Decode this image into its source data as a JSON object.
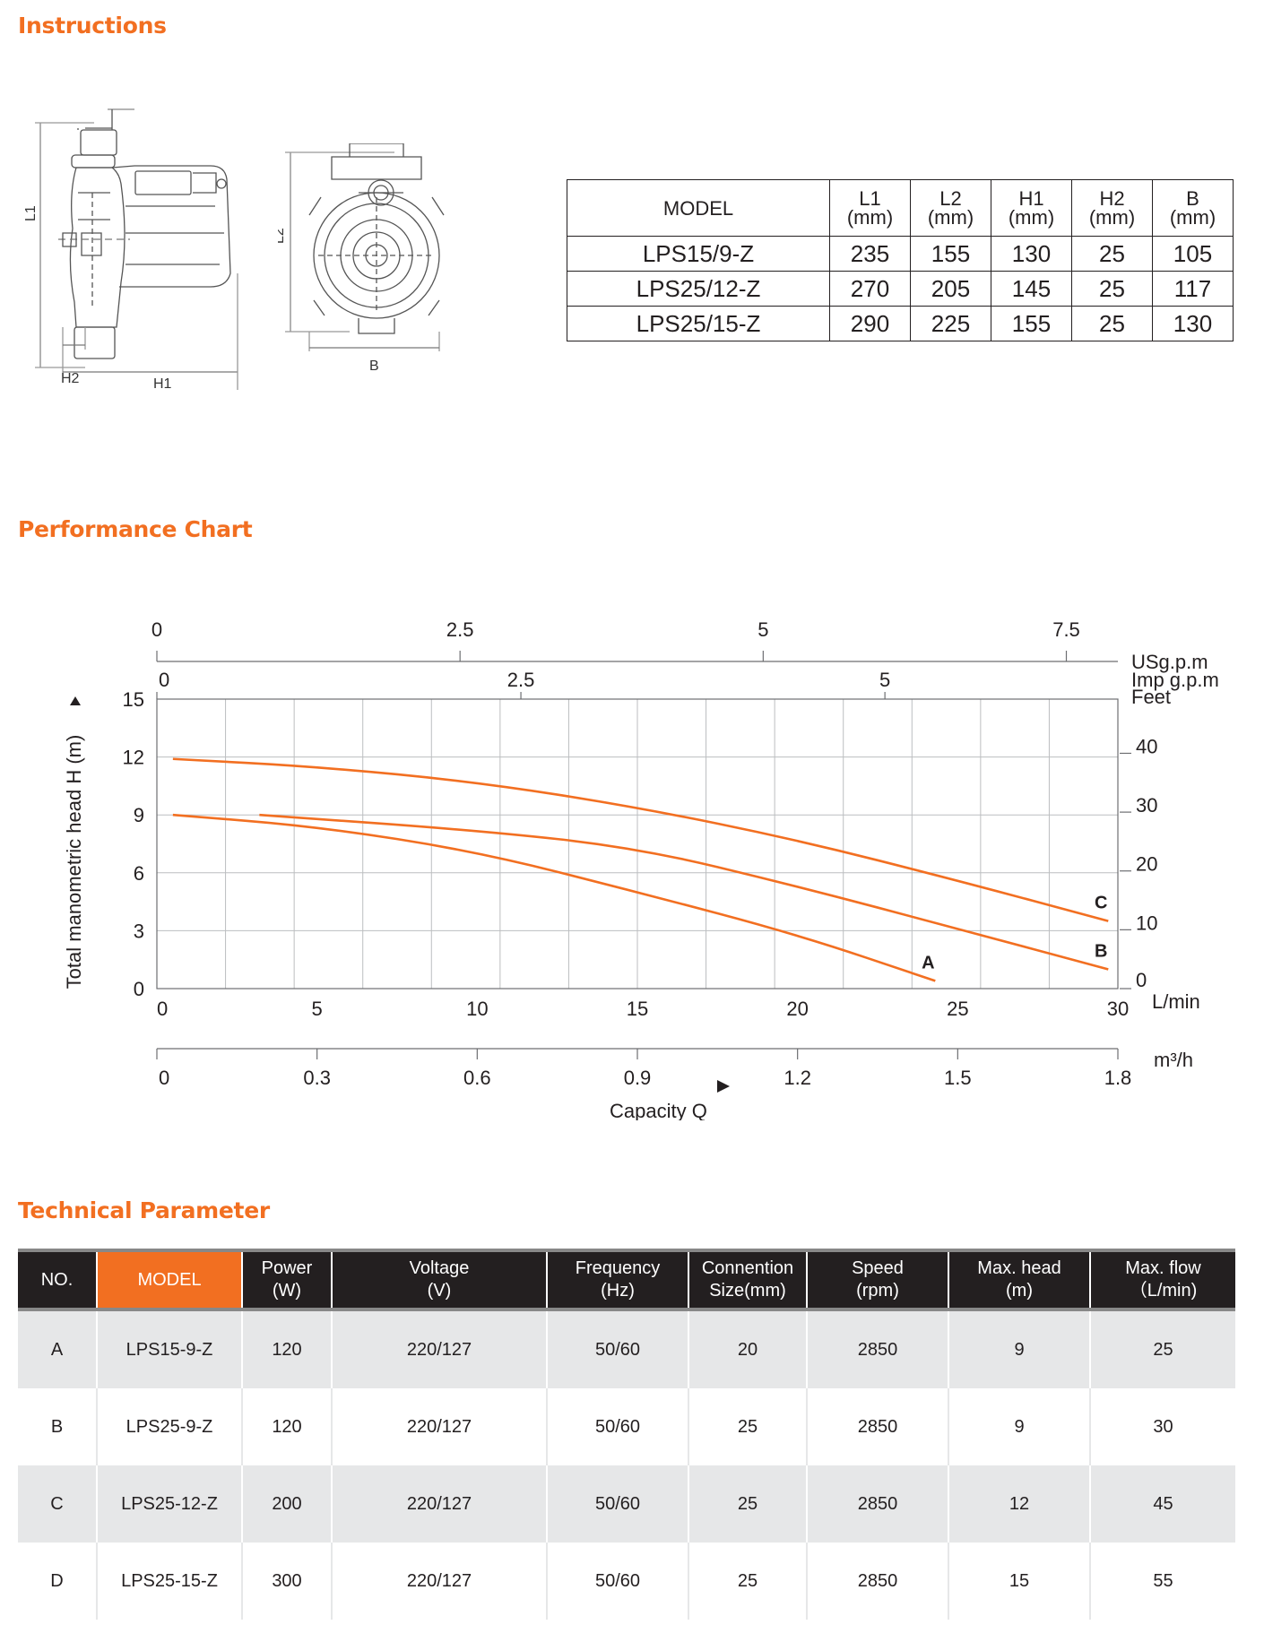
{
  "sections": {
    "instructions": "Instructions",
    "performance": "Performance Chart",
    "technical": "Technical Parameter"
  },
  "drawing": {
    "side_labels": {
      "l1": "L1",
      "h2": "H2",
      "h1": "H1"
    },
    "front_labels": {
      "l2": "L2",
      "b": "B"
    }
  },
  "dimension_table": {
    "header": {
      "model": "MODEL",
      "cols": [
        {
          "name": "L1",
          "unit": "(mm)"
        },
        {
          "name": "L2",
          "unit": "(mm)"
        },
        {
          "name": "H1",
          "unit": "(mm)"
        },
        {
          "name": "H2",
          "unit": "(mm)"
        },
        {
          "name": "B",
          "unit": "(mm)"
        }
      ]
    },
    "rows": [
      {
        "model": "LPS15/9-Z",
        "values": [
          "235",
          "155",
          "130",
          "25",
          "105"
        ]
      },
      {
        "model": "LPS25/12-Z",
        "values": [
          "270",
          "205",
          "145",
          "25",
          "117"
        ]
      },
      {
        "model": "LPS25/15-Z",
        "values": [
          "290",
          "225",
          "155",
          "25",
          "130"
        ]
      }
    ]
  },
  "chart_data": {
    "type": "line",
    "ylabel": "Total manometric head H (m)",
    "xlabel": "Capacity Q",
    "xlim": [
      0,
      30
    ],
    "ylim": [
      0,
      15
    ],
    "x_unit": "L/min",
    "x_ticks": [
      0,
      5,
      10,
      15,
      20,
      25,
      30
    ],
    "y_ticks": [
      0,
      3,
      6,
      9,
      12,
      15
    ],
    "grid": true,
    "secondary_axes": {
      "m3h": {
        "unit": "m³/h",
        "ticks": [
          "0",
          "0.3",
          "0.6",
          "0.9",
          "1.2",
          "1.5",
          "1.8"
        ]
      },
      "usgpm": {
        "unit": "USg.p.m",
        "ticks": [
          "0",
          "2.5",
          "5",
          "7.5"
        ],
        "max": 7.925
      },
      "impgpm": {
        "unit": "Imp g.p.m",
        "ticks": [
          "0",
          "2.5",
          "5"
        ],
        "max": 6.6
      },
      "feet": {
        "unit": "Feet",
        "ticks": [
          "0",
          "10",
          "20",
          "30",
          "40"
        ]
      }
    },
    "series": [
      {
        "name": "A",
        "points": [
          [
            0.5,
            9.0
          ],
          [
            5,
            8.4
          ],
          [
            10,
            7.1
          ],
          [
            15,
            5.0
          ],
          [
            20,
            2.8
          ],
          [
            24.3,
            0.4
          ]
        ]
      },
      {
        "name": "B",
        "points": [
          [
            3.2,
            9.0
          ],
          [
            10,
            8.2
          ],
          [
            15,
            7.3
          ],
          [
            20,
            5.3
          ],
          [
            25,
            3.1
          ],
          [
            29.7,
            1.0
          ]
        ]
      },
      {
        "name": "C",
        "points": [
          [
            0.5,
            11.9
          ],
          [
            5,
            11.5
          ],
          [
            10,
            10.7
          ],
          [
            15,
            9.4
          ],
          [
            20,
            7.7
          ],
          [
            25,
            5.6
          ],
          [
            29.7,
            3.5
          ]
        ]
      }
    ]
  },
  "tech_table": {
    "headers": [
      {
        "line1": "NO.",
        "line2": ""
      },
      {
        "line1": "MODEL",
        "line2": ""
      },
      {
        "line1": "Power",
        "line2": "(W)"
      },
      {
        "line1": "Voltage",
        "line2": "(V)"
      },
      {
        "line1": "Frequency",
        "line2": "(Hz)"
      },
      {
        "line1": "Connention",
        "line2": "Size(mm)"
      },
      {
        "line1": "Speed",
        "line2": "(rpm)"
      },
      {
        "line1": "Max. head",
        "line2": "(m)"
      },
      {
        "line1": "Max. flow",
        "line2": "（L/min)"
      }
    ],
    "rows": [
      [
        "A",
        "LPS15-9-Z",
        "120",
        "220/127",
        "50/60",
        "20",
        "2850",
        "9",
        "25"
      ],
      [
        "B",
        "LPS25-9-Z",
        "120",
        "220/127",
        "50/60",
        "25",
        "2850",
        "9",
        "30"
      ],
      [
        "C",
        "LPS25-12-Z",
        "200",
        "220/127",
        "50/60",
        "25",
        "2850",
        "12",
        "45"
      ],
      [
        "D",
        "LPS25-15-Z",
        "300",
        "220/127",
        "50/60",
        "25",
        "2850",
        "15",
        "55"
      ]
    ]
  },
  "colors": {
    "accent": "#f26f21",
    "header_bg": "#231f20",
    "row_alt": "#e6e7e8",
    "curve": "#f26f21"
  }
}
